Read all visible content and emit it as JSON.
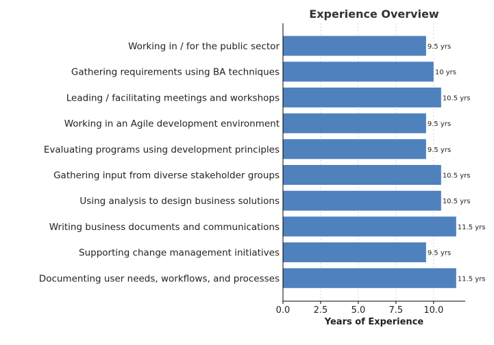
{
  "chart_data": {
    "type": "bar",
    "orientation": "horizontal",
    "title": "Experience Overview",
    "xlabel": "Years of Experience",
    "ylabel": "",
    "categories": [
      "Working in / for the public sector",
      "Gathering requirements using BA techniques",
      "Leading / facilitating meetings and workshops",
      "Working in an Agile development environment",
      "Evaluating programs using development principles",
      "Gathering input from diverse stakeholder groups",
      "Using analysis to design business solutions",
      "Writing business documents and communications",
      "Supporting change management initiatives",
      "Documenting user needs, workflows, and processes"
    ],
    "values": [
      9.5,
      10,
      10.5,
      9.5,
      9.5,
      10.5,
      10.5,
      11.5,
      9.5,
      11.5
    ],
    "data_labels": [
      "9.5 yrs",
      "10 yrs",
      "10.5 yrs",
      "9.5 yrs",
      "9.5 yrs",
      "10.5 yrs",
      "10.5 yrs",
      "11.5 yrs",
      "9.5 yrs",
      "11.5 yrs"
    ],
    "x_ticks": [
      "0.0",
      "2.5",
      "5.0",
      "7.5",
      "10.0"
    ],
    "x_tick_values": [
      0,
      2.5,
      5,
      7.5,
      10
    ],
    "xlim": [
      0,
      12.1
    ],
    "grid": "vertical dashed",
    "bar_color": "#4f81bd"
  }
}
